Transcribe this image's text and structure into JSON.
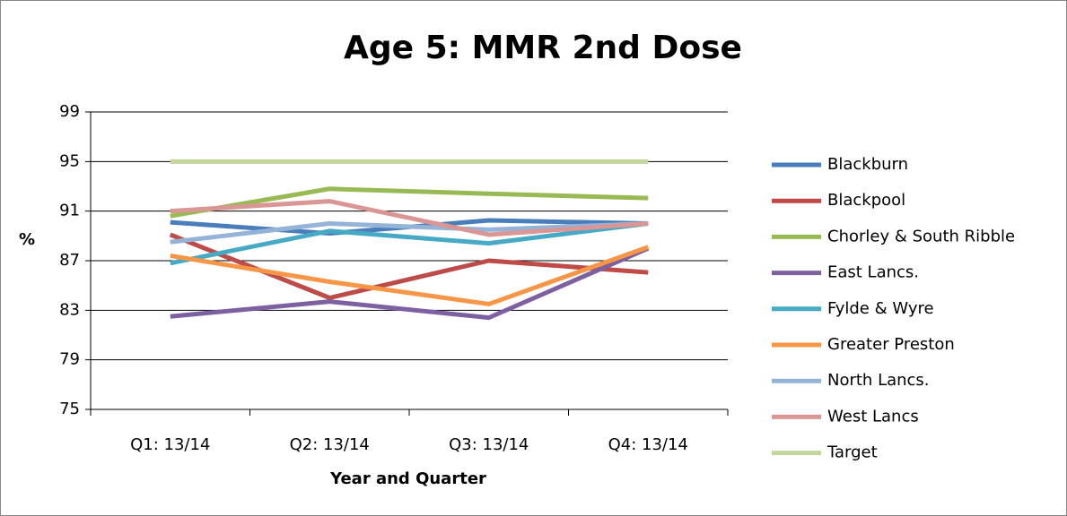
{
  "chart_data": {
    "type": "line",
    "title": "Age 5: MMR 2nd Dose",
    "x_label": "Year and Quarter",
    "y_label": "%",
    "categories": [
      "Q1: 13/14",
      "Q2: 13/14",
      "Q3: 13/14",
      "Q4: 13/14"
    ],
    "series": [
      {
        "name": "Blackburn",
        "color": "#4a7ebb",
        "values": [
          90.1,
          89.2,
          90.25,
          90.0
        ]
      },
      {
        "name": "Blackpool",
        "color": "#be4b48",
        "values": [
          89.1,
          84.0,
          87.0,
          86.05
        ]
      },
      {
        "name": "Chorley & South Ribble",
        "color": "#98b954",
        "values": [
          90.6,
          92.8,
          92.4,
          92.05
        ]
      },
      {
        "name": "East Lancs.",
        "color": "#7d60a0",
        "values": [
          82.5,
          83.7,
          82.4,
          88.0
        ]
      },
      {
        "name": "Fylde & Wyre",
        "color": "#46aac5",
        "values": [
          86.8,
          89.4,
          88.4,
          90.0
        ]
      },
      {
        "name": "Greater Preston",
        "color": "#f79646",
        "values": [
          87.4,
          85.3,
          83.5,
          88.1
        ]
      },
      {
        "name": "North Lancs.",
        "color": "#95b3d7",
        "values": [
          88.5,
          90.0,
          89.5,
          90.0
        ]
      },
      {
        "name": "West Lancs",
        "color": "#d99694",
        "values": [
          91.0,
          91.8,
          89.1,
          90.0
        ]
      },
      {
        "name": "Target",
        "color": "#c3d69b",
        "values": [
          95,
          95,
          95,
          95
        ]
      }
    ],
    "ylim": [
      75,
      99
    ],
    "yticks": [
      75,
      79,
      83,
      87,
      91,
      95,
      99
    ],
    "grid": true,
    "legend": "right"
  }
}
